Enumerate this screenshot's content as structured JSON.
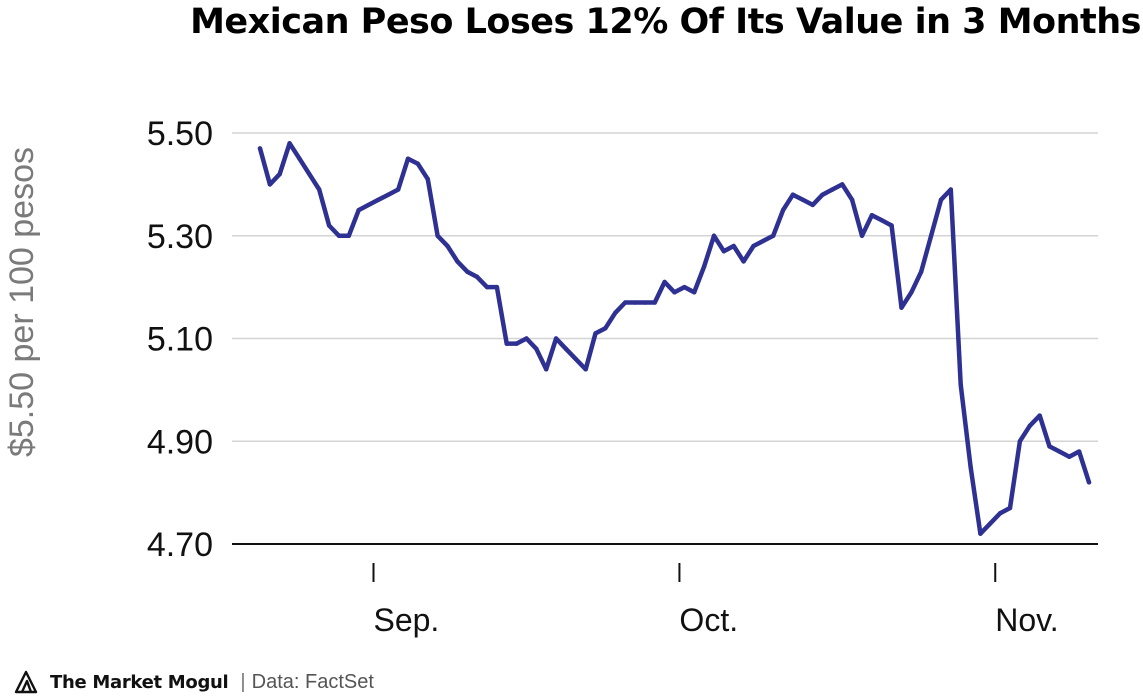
{
  "chart_data": {
    "type": "line",
    "title": "Mexican Peso Loses 12% Of Its Value in 3 Months",
    "ylabel": "$5.50 per 100 pesos",
    "xlabel": "",
    "ylim": [
      4.7,
      5.5
    ],
    "yticks": [
      "5.50",
      "5.30",
      "5.10",
      "4.90",
      "4.70"
    ],
    "yticks_values": [
      5.5,
      5.3,
      5.1,
      4.9,
      4.7
    ],
    "xticks": [
      {
        "label": "Sep.",
        "index": 11.5
      },
      {
        "label": "Oct.",
        "index": 42.5
      },
      {
        "label": "Nov.",
        "index": 74.5
      }
    ],
    "grid": "horizontal",
    "line_color": "#2e3192",
    "series": [
      {
        "values": [
          5.47,
          5.4,
          5.42,
          5.48,
          5.45,
          5.42,
          5.39,
          5.32,
          5.3,
          5.3,
          5.35,
          5.36,
          5.37,
          5.38,
          5.39,
          5.45,
          5.44,
          5.41,
          5.3,
          5.28,
          5.25,
          5.23,
          5.22,
          5.2,
          5.2,
          5.09,
          5.09,
          5.1,
          5.08,
          5.04,
          5.1,
          5.08,
          5.06,
          5.04,
          5.11,
          5.12,
          5.15,
          5.17,
          5.17,
          5.17,
          5.17,
          5.21,
          5.19,
          5.2,
          5.19,
          5.24,
          5.3,
          5.27,
          5.28,
          5.25,
          5.28,
          5.29,
          5.3,
          5.35,
          5.38,
          5.37,
          5.36,
          5.38,
          5.39,
          5.4,
          5.37,
          5.3,
          5.34,
          5.33,
          5.32,
          5.16,
          5.19,
          5.23,
          5.3,
          5.37,
          5.39,
          5.01,
          4.85,
          4.72,
          4.74,
          4.76,
          4.77,
          4.9,
          4.93,
          4.95,
          4.89,
          4.88,
          4.87,
          4.88,
          4.82
        ]
      }
    ]
  },
  "footer": {
    "brand": "The Market Mogul",
    "source": "Data: FactSet",
    "logo_icon": "mountain-logo-icon"
  }
}
